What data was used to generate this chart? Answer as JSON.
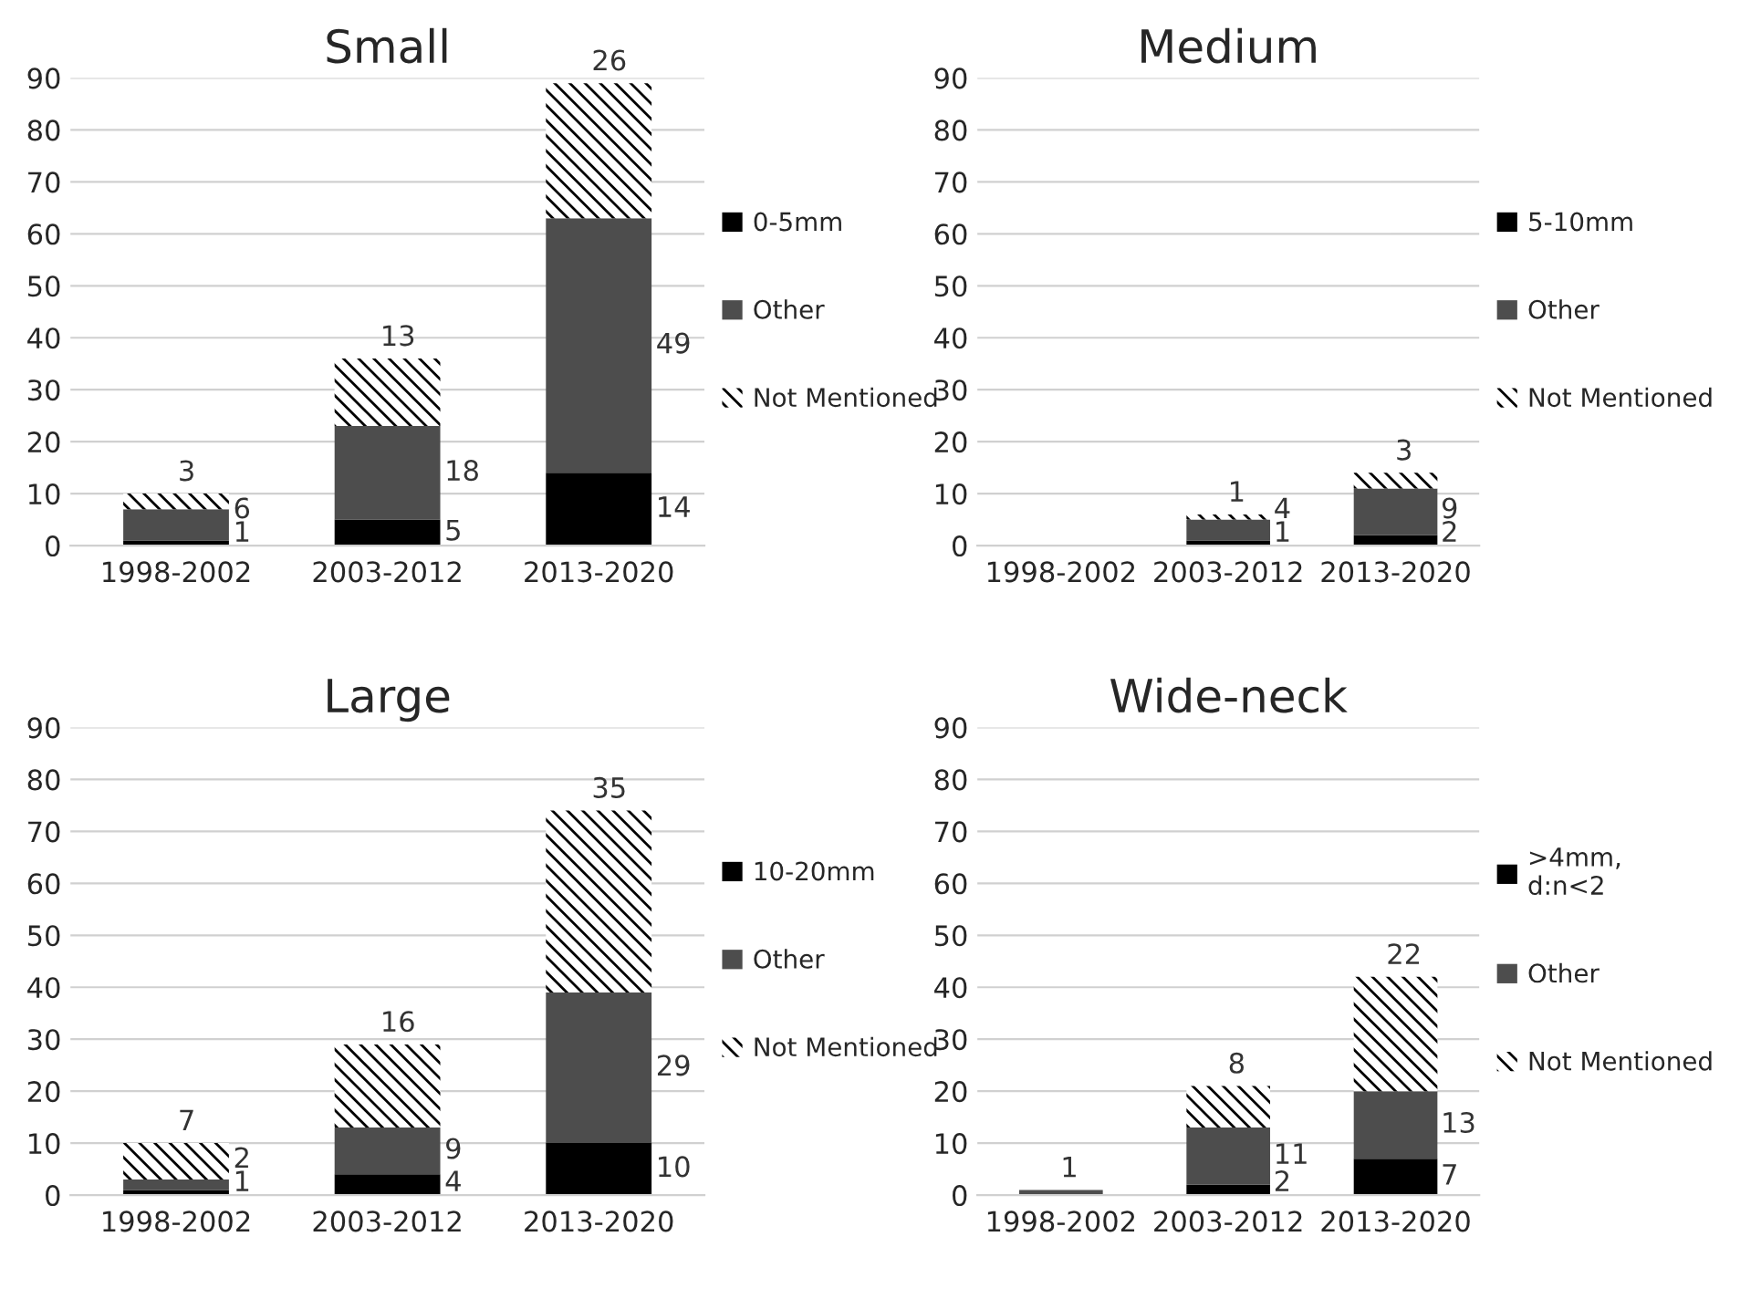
{
  "chart_data": [
    {
      "type": "bar",
      "title": "Small",
      "stacked": true,
      "categories": [
        "1998-2002",
        "2003-2012",
        "2013-2020"
      ],
      "ylim": [
        0,
        90
      ],
      "yticks": [
        0,
        10,
        20,
        30,
        40,
        50,
        60,
        70,
        80,
        90
      ],
      "grid": "y",
      "legend": "right",
      "data_labels": true,
      "series": [
        {
          "name": "0-5mm",
          "color": "#000000",
          "values": [
            1,
            5,
            14
          ]
        },
        {
          "name": "Other",
          "color": "#4d4d4d",
          "values": [
            6,
            18,
            49
          ]
        },
        {
          "name": "Not Mentioned",
          "color": "#ffffff",
          "values": [
            3,
            13,
            26
          ]
        }
      ]
    },
    {
      "type": "bar",
      "title": "Medium",
      "stacked": true,
      "categories": [
        "1998-2002",
        "2003-2012",
        "2013-2020"
      ],
      "ylim": [
        0,
        90
      ],
      "yticks": [
        0,
        10,
        20,
        30,
        40,
        50,
        60,
        70,
        80,
        90
      ],
      "grid": "y",
      "legend": "right",
      "data_labels": true,
      "series": [
        {
          "name": "5-10mm",
          "color": "#000000",
          "values": [
            null,
            1,
            2
          ]
        },
        {
          "name": "Other",
          "color": "#4d4d4d",
          "values": [
            null,
            4,
            9
          ]
        },
        {
          "name": "Not Mentioned",
          "color": "#ffffff",
          "values": [
            null,
            1,
            3
          ]
        }
      ]
    },
    {
      "type": "bar",
      "title": "Large",
      "stacked": true,
      "categories": [
        "1998-2002",
        "2003-2012",
        "2013-2020"
      ],
      "ylim": [
        0,
        90
      ],
      "yticks": [
        0,
        10,
        20,
        30,
        40,
        50,
        60,
        70,
        80,
        90
      ],
      "grid": "y",
      "legend": "right",
      "data_labels": true,
      "series": [
        {
          "name": "10-20mm",
          "color": "#000000",
          "values": [
            1,
            4,
            10
          ]
        },
        {
          "name": "Other",
          "color": "#4d4d4d",
          "values": [
            2,
            9,
            29
          ]
        },
        {
          "name": "Not Mentioned",
          "color": "#ffffff",
          "values": [
            7,
            16,
            35
          ]
        }
      ]
    },
    {
      "type": "bar",
      "title": "Wide-neck",
      "stacked": true,
      "categories": [
        "1998-2002",
        "2003-2012",
        "2013-2020"
      ],
      "ylim": [
        0,
        90
      ],
      "yticks": [
        0,
        10,
        20,
        30,
        40,
        50,
        60,
        70,
        80,
        90
      ],
      "grid": "y",
      "legend": "right",
      "data_labels": true,
      "series": [
        {
          "name": ">4mm,\nd:n<2",
          "color": "#000000",
          "values": [
            null,
            2,
            7
          ]
        },
        {
          "name": "Other",
          "color": "#4d4d4d",
          "values": [
            1,
            11,
            13
          ]
        },
        {
          "name": "Not Mentioned",
          "color": "#ffffff",
          "values": [
            null,
            8,
            22
          ]
        }
      ]
    }
  ]
}
